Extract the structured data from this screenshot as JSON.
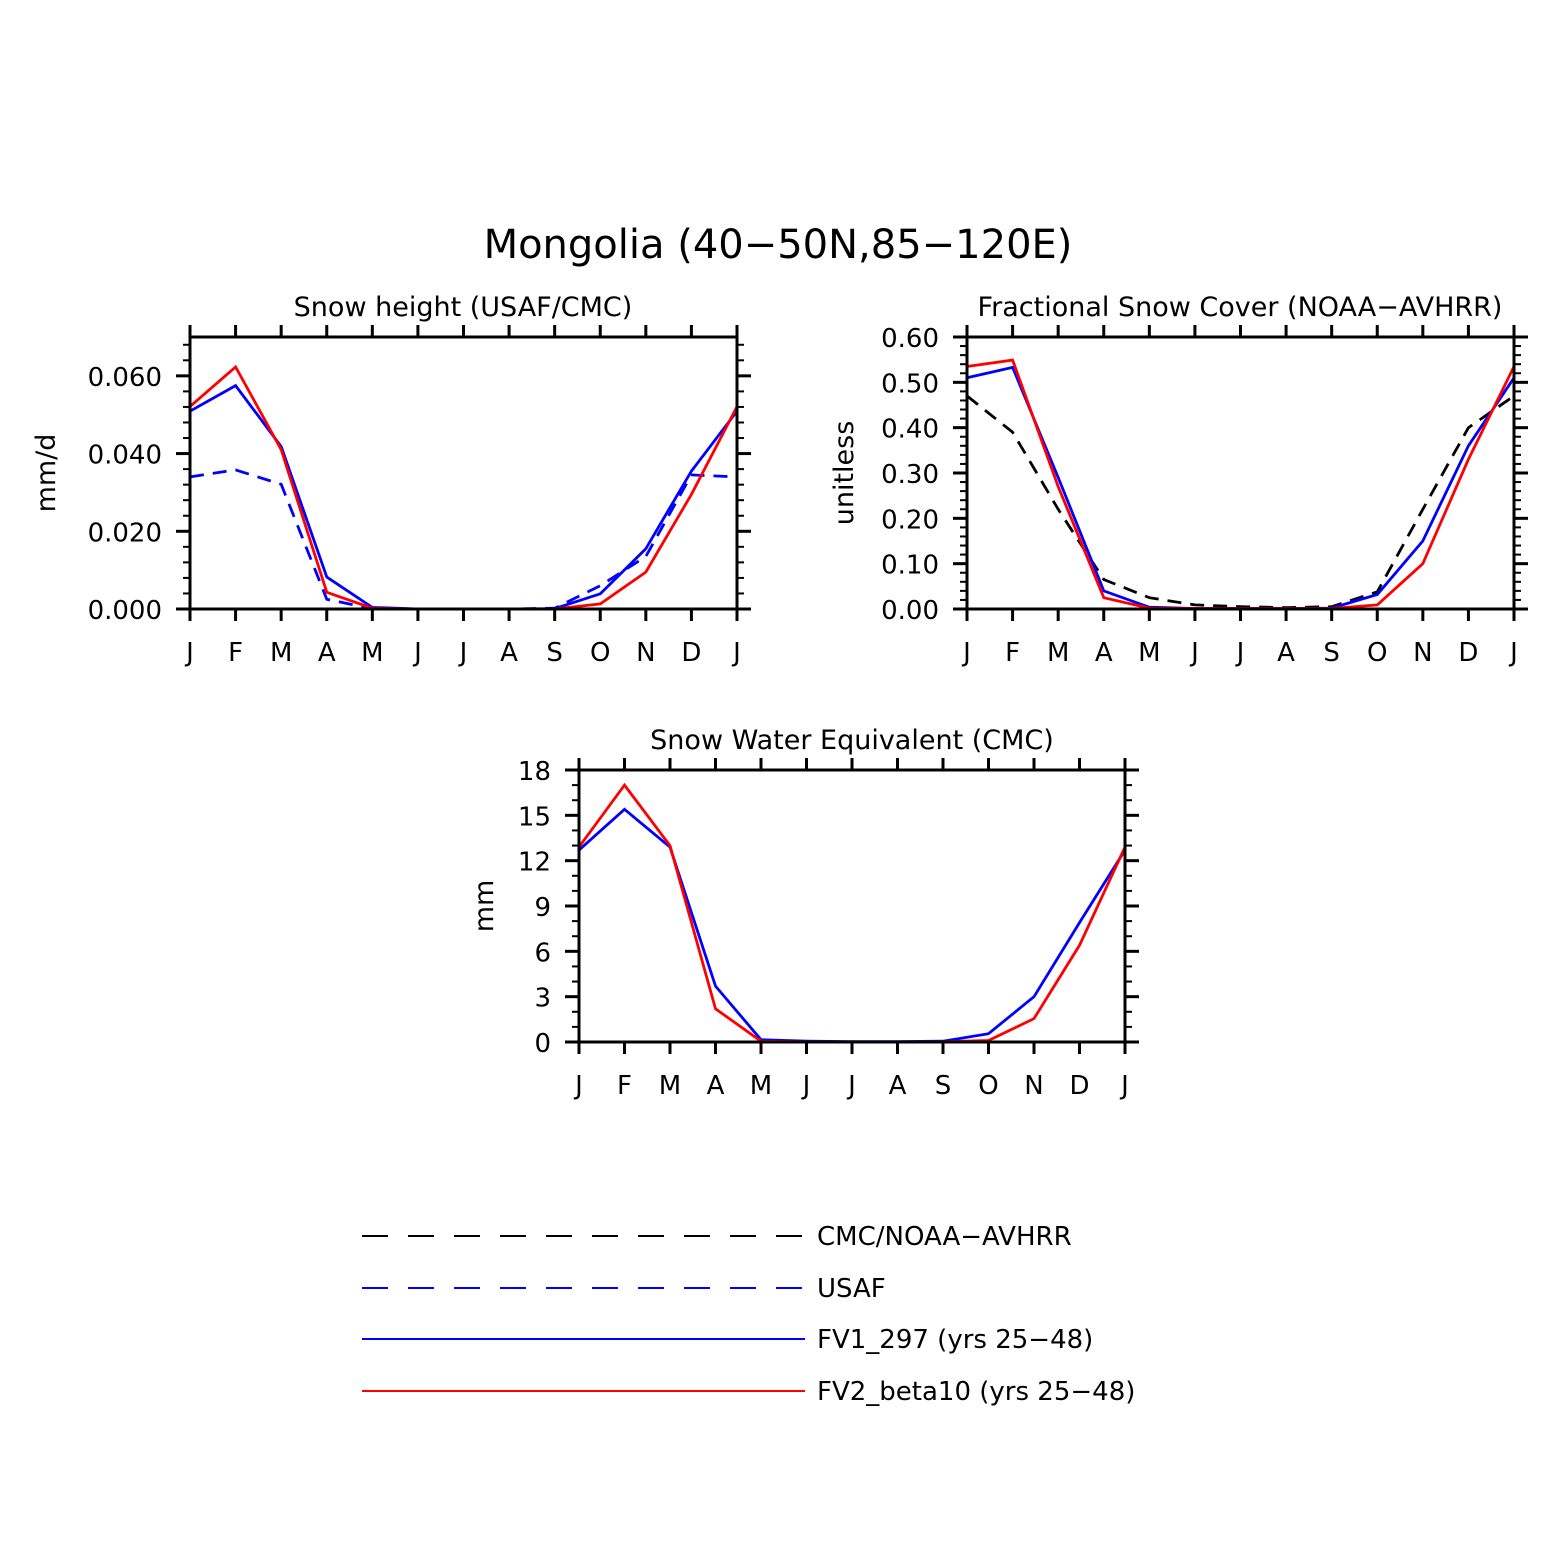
{
  "title": "Mongolia (40−50N,85−120E)",
  "colors": {
    "obs": "#000000",
    "usaf": "#0000ff",
    "fv1": "#0000ff",
    "fv2": "#ff0000"
  },
  "legend": [
    {
      "key": "obs",
      "label": "CMC/NOAA−AVHRR",
      "dashed": true
    },
    {
      "key": "usaf",
      "label": "USAF",
      "dashed": true
    },
    {
      "key": "fv1",
      "label": "FV1_297 (yrs 25−48)",
      "dashed": false
    },
    {
      "key": "fv2",
      "label": "FV2_beta10 (yrs 25−48)",
      "dashed": false
    }
  ],
  "chart_data": [
    {
      "type": "line",
      "title": "Snow height (USAF/CMC)",
      "ylabel": "mm/d",
      "categories": [
        "J",
        "F",
        "M",
        "A",
        "M",
        "J",
        "J",
        "A",
        "S",
        "O",
        "N",
        "D",
        "J"
      ],
      "ylim": [
        0,
        0.07
      ],
      "yticks": [
        0.0,
        0.02,
        0.04,
        0.06
      ],
      "ytick_labels": [
        "0.000",
        "0.020",
        "0.040",
        "0.060"
      ],
      "series": [
        {
          "key": "obs",
          "dashed": true,
          "values": [
            0,
            0,
            0,
            0,
            0,
            0,
            0,
            0,
            0,
            0,
            0,
            0,
            0
          ]
        },
        {
          "key": "usaf",
          "dashed": true,
          "values": [
            0.034,
            0.0358,
            0.0321,
            0.0025,
            0.0001,
            0,
            0,
            0,
            0.0002,
            0.006,
            0.0135,
            0.0345,
            0.034
          ]
        },
        {
          "key": "fv1",
          "dashed": false,
          "values": [
            0.0509,
            0.0575,
            0.0418,
            0.0082,
            0.0004,
            0,
            0,
            0,
            0.0001,
            0.0039,
            0.0155,
            0.0355,
            0.0509
          ]
        },
        {
          "key": "fv2",
          "dashed": false,
          "values": [
            0.0521,
            0.0623,
            0.041,
            0.0043,
            0.0002,
            0,
            0,
            0,
            0,
            0.0013,
            0.0095,
            0.0295,
            0.0521
          ]
        }
      ]
    },
    {
      "type": "line",
      "title": "Fractional Snow Cover (NOAA−AVHRR)",
      "ylabel": "unitless",
      "categories": [
        "J",
        "F",
        "M",
        "A",
        "M",
        "J",
        "J",
        "A",
        "S",
        "O",
        "N",
        "D",
        "J"
      ],
      "ylim": [
        0,
        0.6
      ],
      "yticks": [
        0.0,
        0.1,
        0.2,
        0.3,
        0.4,
        0.5,
        0.6
      ],
      "ytick_labels": [
        "0.00",
        "0.10",
        "0.20",
        "0.30",
        "0.40",
        "0.50",
        "0.60"
      ],
      "series": [
        {
          "key": "obs",
          "dashed": true,
          "values": [
            0.47,
            0.39,
            0.22,
            0.065,
            0.025,
            0.009,
            0.005,
            0.003,
            0.005,
            0.038,
            0.22,
            0.4,
            0.47
          ]
        },
        {
          "key": "fv1",
          "dashed": false,
          "values": [
            0.51,
            0.533,
            0.29,
            0.04,
            0.004,
            0.001,
            0.001,
            0.001,
            0.002,
            0.032,
            0.15,
            0.36,
            0.51
          ]
        },
        {
          "key": "fv2",
          "dashed": false,
          "values": [
            0.535,
            0.549,
            0.27,
            0.025,
            0.002,
            0.001,
            0.001,
            0.001,
            0.001,
            0.009,
            0.1,
            0.33,
            0.535
          ]
        }
      ]
    },
    {
      "type": "line",
      "title": "Snow Water Equivalent (CMC)",
      "ylabel": "mm",
      "categories": [
        "J",
        "F",
        "M",
        "A",
        "M",
        "J",
        "J",
        "A",
        "S",
        "O",
        "N",
        "D",
        "J"
      ],
      "ylim": [
        0,
        18
      ],
      "yticks": [
        0,
        3,
        6,
        9,
        12,
        15,
        18
      ],
      "ytick_labels": [
        "0",
        "3",
        "6",
        "9",
        "12",
        "15",
        "18"
      ],
      "series": [
        {
          "key": "fv1",
          "dashed": false,
          "values": [
            12.7,
            15.4,
            12.9,
            3.7,
            0.15,
            0.05,
            0.02,
            0.02,
            0.05,
            0.55,
            3.0,
            7.9,
            12.7
          ]
        },
        {
          "key": "fv2",
          "dashed": false,
          "values": [
            12.9,
            17.0,
            13.0,
            2.2,
            0.05,
            0.01,
            0.01,
            0.01,
            0.01,
            0.1,
            1.55,
            6.4,
            12.9
          ]
        }
      ]
    }
  ]
}
